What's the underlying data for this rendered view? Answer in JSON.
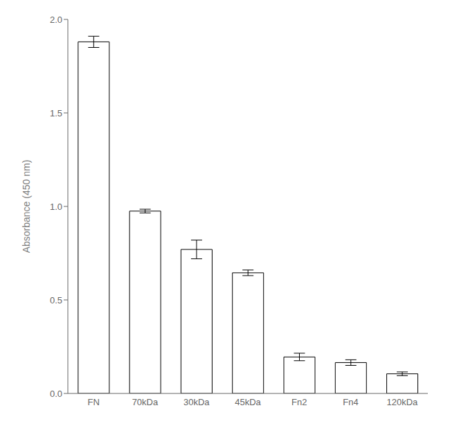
{
  "chart_data": {
    "type": "bar",
    "categories": [
      "FN",
      "70kDa",
      "30kDa",
      "45kDa",
      "Fn2",
      "Fn4",
      "120kDa"
    ],
    "values": [
      1.88,
      0.975,
      0.77,
      0.645,
      0.195,
      0.165,
      0.105
    ],
    "errors": [
      0.03,
      0.01,
      0.05,
      0.015,
      0.02,
      0.015,
      0.01
    ],
    "color": "#ffffff",
    "y_label": "Absorbance (450 nm)",
    "ylim": [
      0,
      2.0
    ],
    "yticks": [
      {
        "value": 0,
        "label": "0.0"
      },
      0.5,
      {
        "value": 1,
        "label": "1.0"
      },
      1.5,
      {
        "value": 2,
        "label": "2.0"
      }
    ],
    "grid": false
  }
}
